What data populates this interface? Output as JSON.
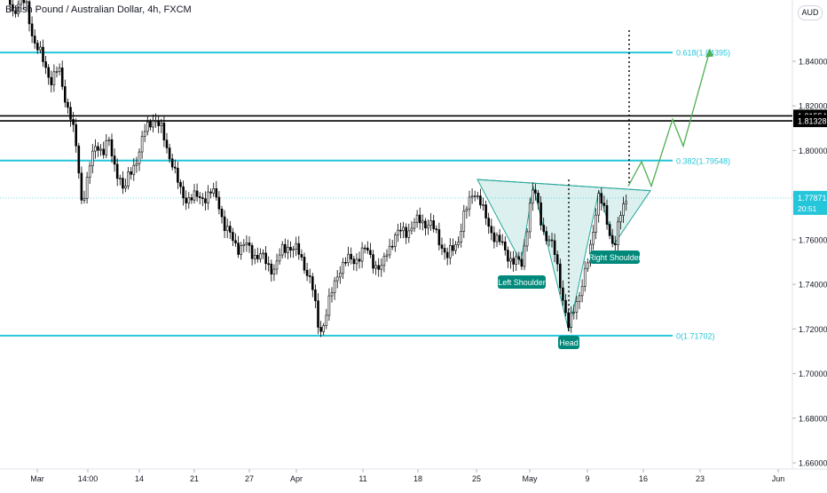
{
  "header": {
    "title": "British Pound / Australian Dollar, 4h, FXCM",
    "currency": "AUD"
  },
  "chart_data": {
    "type": "candlestick",
    "symbol": "GBPAUD",
    "timeframe": "4h",
    "colors": {
      "candle": "#000000",
      "level": "#26c6da",
      "pattern": "#26a69a",
      "projection": "#4caf50",
      "label_bg": "#00897b"
    },
    "y_axis": {
      "ticks": [
        "1.84000",
        "1.82000",
        "1.80000",
        "1.78000",
        "1.76000",
        "1.74000",
        "1.72000",
        "1.70000",
        "1.68000",
        "1.66000"
      ],
      "range": [
        1.6593,
        1.8707
      ]
    },
    "x_axis": {
      "ticks": [
        "Mar",
        "14:00",
        "14",
        "21",
        "27",
        "Apr",
        "11",
        "18",
        "25",
        "May",
        "9",
        "16",
        "23",
        "Jun"
      ]
    },
    "levels": [
      {
        "name": "fib-0618",
        "price": 1.84395,
        "label": "0.618(1.84395)"
      },
      {
        "name": "fib-0382",
        "price": 1.79548,
        "label": "0.382(1.79548)"
      },
      {
        "name": "fib-0",
        "price": 1.71702,
        "label": "0(1.71702)"
      }
    ],
    "resistance_lines": [
      {
        "price": 1.81554,
        "label": "1.81554"
      },
      {
        "price": 1.81328,
        "label": "1.81328"
      }
    ],
    "current_price": {
      "price": 1.77871,
      "label": "1.77871",
      "countdown": "20:51"
    },
    "pattern_labels": {
      "left_shoulder": "Left Shoulder",
      "head": "Head",
      "right_shoulder": "Right Shoulder"
    },
    "path": [
      [
        0,
        1.88
      ],
      [
        8,
        1.87
      ],
      [
        15,
        1.862
      ],
      [
        22,
        1.868
      ],
      [
        30,
        1.864
      ],
      [
        38,
        1.85
      ],
      [
        48,
        1.84
      ],
      [
        58,
        1.832
      ],
      [
        66,
        1.836
      ],
      [
        72,
        1.826
      ],
      [
        80,
        1.815
      ],
      [
        86,
        1.8
      ],
      [
        92,
        1.778
      ],
      [
        97,
        1.785
      ],
      [
        103,
        1.796
      ],
      [
        110,
        1.803
      ],
      [
        116,
        1.8
      ],
      [
        122,
        1.804
      ],
      [
        128,
        1.794
      ],
      [
        134,
        1.79
      ],
      [
        140,
        1.78
      ],
      [
        146,
        1.79
      ],
      [
        152,
        1.795
      ],
      [
        158,
        1.8
      ],
      [
        163,
        1.808
      ],
      [
        168,
        1.813
      ],
      [
        173,
        1.815
      ],
      [
        178,
        1.811
      ],
      [
        183,
        1.808
      ],
      [
        188,
        1.802
      ],
      [
        193,
        1.796
      ],
      [
        198,
        1.788
      ],
      [
        203,
        1.782
      ],
      [
        210,
        1.779
      ],
      [
        218,
        1.778
      ],
      [
        226,
        1.78
      ],
      [
        234,
        1.779
      ],
      [
        241,
        1.781
      ],
      [
        247,
        1.777
      ],
      [
        252,
        1.766
      ],
      [
        258,
        1.762
      ],
      [
        264,
        1.76
      ],
      [
        270,
        1.756
      ],
      [
        278,
        1.757
      ],
      [
        286,
        1.754
      ],
      [
        294,
        1.752
      ],
      [
        302,
        1.749
      ],
      [
        310,
        1.747
      ],
      [
        318,
        1.755
      ],
      [
        324,
        1.758
      ],
      [
        330,
        1.756
      ],
      [
        336,
        1.754
      ],
      [
        342,
        1.75
      ],
      [
        348,
        1.744
      ],
      [
        353,
        1.736
      ],
      [
        358,
        1.722
      ],
      [
        363,
        1.72
      ],
      [
        368,
        1.728
      ],
      [
        373,
        1.734
      ],
      [
        378,
        1.742
      ],
      [
        383,
        1.748
      ],
      [
        390,
        1.75
      ],
      [
        398,
        1.751
      ],
      [
        405,
        1.753
      ],
      [
        412,
        1.755
      ],
      [
        418,
        1.753
      ],
      [
        424,
        1.748
      ],
      [
        430,
        1.746
      ],
      [
        436,
        1.755
      ],
      [
        442,
        1.76
      ],
      [
        448,
        1.762
      ],
      [
        454,
        1.764
      ],
      [
        462,
        1.765
      ],
      [
        468,
        1.767
      ],
      [
        474,
        1.769
      ],
      [
        480,
        1.768
      ],
      [
        486,
        1.766
      ],
      [
        492,
        1.762
      ],
      [
        498,
        1.758
      ],
      [
        504,
        1.752
      ],
      [
        510,
        1.755
      ],
      [
        516,
        1.76
      ],
      [
        522,
        1.77
      ],
      [
        528,
        1.775
      ],
      [
        534,
        1.783
      ],
      [
        540,
        1.779
      ],
      [
        546,
        1.77
      ],
      [
        552,
        1.765
      ],
      [
        558,
        1.762
      ],
      [
        564,
        1.758
      ],
      [
        570,
        1.754
      ],
      [
        576,
        1.752
      ],
      [
        582,
        1.75
      ],
      [
        588,
        1.748
      ],
      [
        592,
        1.76
      ],
      [
        596,
        1.774
      ],
      [
        601,
        1.783
      ],
      [
        606,
        1.775
      ],
      [
        612,
        1.765
      ],
      [
        618,
        1.76
      ],
      [
        624,
        1.755
      ],
      [
        630,
        1.745
      ],
      [
        636,
        1.73
      ],
      [
        641,
        1.719
      ],
      [
        646,
        1.728
      ],
      [
        652,
        1.736
      ],
      [
        658,
        1.742
      ],
      [
        664,
        1.752
      ],
      [
        670,
        1.77
      ],
      [
        675,
        1.781
      ],
      [
        680,
        1.773
      ],
      [
        686,
        1.764
      ],
      [
        692,
        1.758
      ],
      [
        698,
        1.768
      ],
      [
        704,
        1.776
      ],
      [
        710,
        1.782
      ]
    ]
  }
}
